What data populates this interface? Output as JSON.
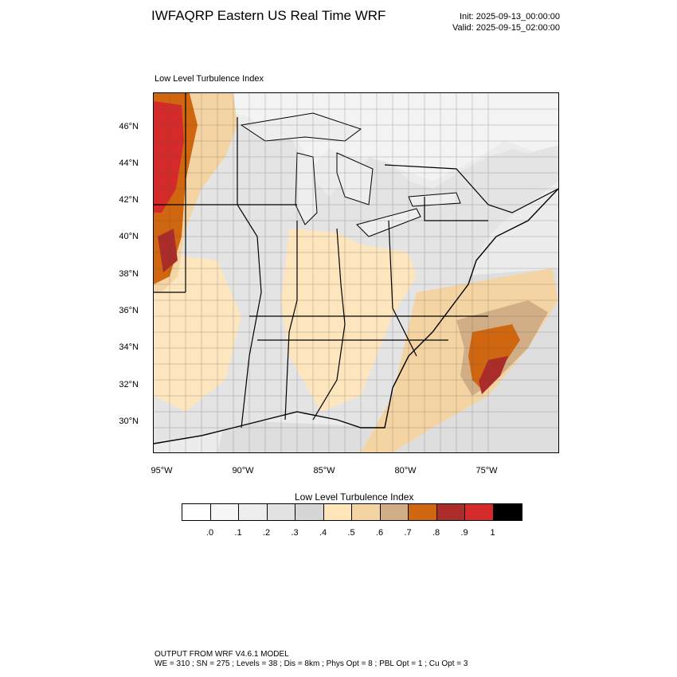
{
  "header": {
    "title": "IWFAQRP Eastern US Real Time WRF",
    "init": "Init: 2025-09-13_00:00:00",
    "valid": "Valid: 2025-09-15_02:00:00"
  },
  "map": {
    "field_label": "Low Level Turbulence Index",
    "lat_labels": [
      "46°N",
      "44°N",
      "42°N",
      "40°N",
      "38°N",
      "36°N",
      "34°N",
      "32°N",
      "30°N"
    ],
    "lon_labels": [
      "95°W",
      "90°W",
      "85°W",
      "80°W",
      "75°W"
    ]
  },
  "colorbar": {
    "title": "Low Level Turbulence Index",
    "colors": [
      "#ffffff",
      "#f7f7f7",
      "#eeeeee",
      "#e2e2e2",
      "#d6d6d6",
      "#ffe5b8",
      "#f5d4a4",
      "#d2ae86",
      "#d06710",
      "#ab2c29",
      "#d42a2a",
      "#000000"
    ],
    "labels": [
      ".0",
      ".1",
      ".2",
      ".3",
      ".4",
      ".5",
      ".6",
      ".7",
      ".8",
      ".9",
      "1"
    ]
  },
  "footer": {
    "line1": "OUTPUT FROM WRF V4.6.1 MODEL",
    "line2": "WE = 310 ; SN = 275 ; Levels = 38 ; Dis = 8km ; Phys Opt = 8 ; PBL Opt = 1 ; Cu Opt = 3"
  }
}
